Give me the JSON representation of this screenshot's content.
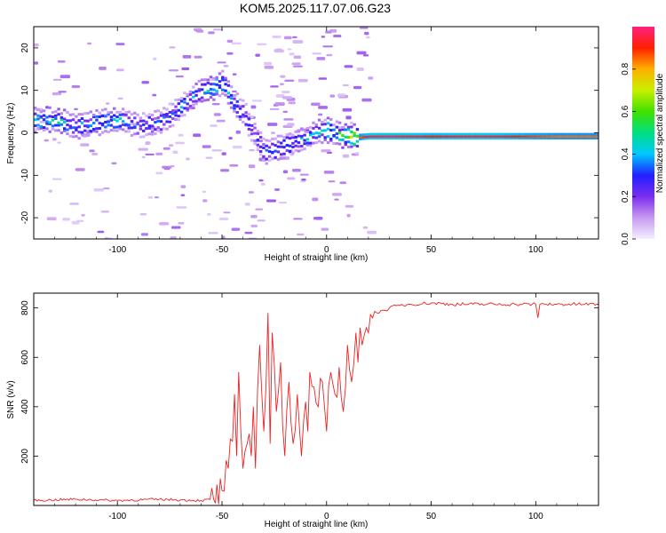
{
  "figure_title": "KOM5.2025.117.07.06.G23",
  "colors": {
    "snr_line": "#ee2222",
    "colormap": [
      "#f3f0ff",
      "#c89af0",
      "#7b2cf0",
      "#2020ff",
      "#00c8ff",
      "#00e080",
      "#40e000",
      "#c8f000",
      "#ffb000",
      "#ff2000",
      "#ff2080"
    ]
  },
  "chart_data": [
    {
      "type": "heatmap",
      "title": "KOM5.2025.117.07.06.G23",
      "xlabel": "Height of straight line (km)",
      "ylabel": "Frequency (Hz)",
      "xlim": [
        -140,
        130
      ],
      "ylim": [
        -25,
        25
      ],
      "xticks": [
        -100,
        -50,
        0,
        50,
        100
      ],
      "yticks": [
        -20,
        -10,
        0,
        10,
        20
      ],
      "colorbar": {
        "label": "Normalized spectral amplitude",
        "range": [
          0,
          1
        ],
        "ticks": [
          "0.0",
          "0.2",
          "0.4",
          "0.6",
          "0.8"
        ]
      },
      "ridge": {
        "x": [
          -140,
          -130,
          -120,
          -110,
          -100,
          -90,
          -80,
          -70,
          -62,
          -55,
          -50,
          -45,
          -40,
          -35,
          -30,
          -25,
          -20,
          -15,
          -10,
          -5,
          0,
          5,
          10,
          15,
          20,
          30,
          50,
          70,
          90,
          110,
          130
        ],
        "y": [
          3.0,
          3.0,
          1.5,
          2.5,
          3.0,
          1.5,
          2.5,
          6.0,
          9.5,
          10.5,
          12.0,
          7.0,
          4.5,
          -0.5,
          -4.5,
          -4.0,
          -3.0,
          -2.0,
          -1.0,
          0.0,
          0.5,
          -0.5,
          -1.0,
          -1.0,
          -0.8,
          -0.8,
          -0.8,
          -0.8,
          -0.8,
          -0.8,
          -0.8
        ],
        "amplitude": [
          0.45,
          0.45,
          0.35,
          0.4,
          0.4,
          0.3,
          0.3,
          0.35,
          0.4,
          0.45,
          0.45,
          0.4,
          0.3,
          0.25,
          0.3,
          0.3,
          0.35,
          0.35,
          0.4,
          0.4,
          0.45,
          0.5,
          0.6,
          0.85,
          0.95,
          0.97,
          0.9,
          0.95,
          0.9,
          0.85,
          0.85
        ]
      }
    },
    {
      "type": "line",
      "xlabel": "Height of straight line (km)",
      "ylabel": "SNR (v/v)",
      "xlim": [
        -140,
        130
      ],
      "ylim": [
        0,
        860
      ],
      "xticks": [
        -100,
        -50,
        0,
        50,
        100
      ],
      "yticks": [
        200,
        400,
        600,
        800
      ],
      "series": [
        {
          "x": [
            -140,
            -120,
            -100,
            -80,
            -60,
            -54,
            -50,
            -47,
            -45,
            -44,
            -43,
            -42,
            -41,
            -40,
            -38,
            -36,
            -35,
            -34,
            -32,
            -30,
            -29,
            -28,
            -27,
            -26,
            -24,
            -22,
            -20,
            -18,
            -16,
            -14,
            -12,
            -10,
            -9,
            -8,
            -6,
            -4,
            -2,
            0,
            2,
            4,
            6,
            8,
            10,
            12,
            14,
            15,
            16,
            17,
            18,
            19,
            20,
            22,
            24,
            26,
            28,
            30,
            35,
            40,
            50,
            60,
            70,
            80,
            90,
            100,
            101,
            102,
            105,
            110,
            120,
            130
          ],
          "y": [
            20,
            25,
            20,
            25,
            20,
            25,
            60,
            150,
            260,
            450,
            200,
            540,
            300,
            150,
            250,
            200,
            400,
            150,
            650,
            300,
            480,
            780,
            250,
            700,
            380,
            580,
            200,
            500,
            250,
            450,
            200,
            420,
            300,
            540,
            480,
            400,
            500,
            300,
            540,
            450,
            560,
            380,
            650,
            500,
            700,
            580,
            720,
            650,
            690,
            720,
            700,
            760,
            780,
            790,
            790,
            800,
            810,
            815,
            820,
            815,
            815,
            815,
            815,
            815,
            760,
            815,
            815,
            815,
            815,
            815
          ]
        }
      ]
    }
  ]
}
